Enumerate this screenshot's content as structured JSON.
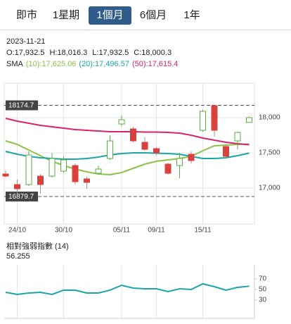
{
  "tabs": [
    "即市",
    "1星期",
    "1個月",
    "6個月",
    "1年"
  ],
  "selected_tab": 2,
  "header": {
    "date": "2023-11-21",
    "ohlc": [
      "O:17,932.5",
      "H:18,016.3",
      "L:17,932.5",
      "C:18,000.3"
    ]
  },
  "chart_data": [
    {
      "type": "candlestick",
      "categories": [
        null,
        "24/10",
        null,
        null,
        null,
        "30/10",
        null,
        null,
        null,
        null,
        "05/11",
        null,
        null,
        "09/11",
        null,
        null,
        null,
        "15/11",
        null,
        null,
        null,
        null
      ],
      "open": [
        17200,
        17050,
        17050,
        17170,
        17170,
        17240,
        17320,
        17130,
        17210,
        17420,
        17910,
        17840,
        17650,
        17560,
        17340,
        17320,
        17480,
        17820,
        18170,
        17590,
        17670,
        17932.5
      ],
      "high": [
        17250,
        17120,
        17520,
        17200,
        17500,
        17450,
        17350,
        17160,
        17320,
        17750,
        18030,
        17870,
        17720,
        17580,
        17360,
        17500,
        17520,
        18110,
        18175,
        17600,
        17800,
        18016.3
      ],
      "low": [
        17150,
        16920,
        17030,
        16920,
        17150,
        17220,
        17050,
        16990,
        17190,
        17400,
        17880,
        17650,
        17530,
        17470,
        17190,
        17140,
        17350,
        17800,
        17730,
        17430,
        17550,
        17932.5
      ],
      "close": [
        17170,
        16990,
        17470,
        17050,
        17420,
        17400,
        17090,
        17080,
        17270,
        17670,
        17970,
        17670,
        17550,
        17500,
        17210,
        17420,
        17390,
        18090,
        17820,
        17450,
        17790,
        18000.3
      ],
      "up_color": "#5aac44",
      "down_color": "#d9413f",
      "legend_title": "SMA",
      "series": [
        {
          "name": "(10):17,625.06",
          "color": "#8bc34a",
          "values": [
            17670,
            17620,
            17540,
            17460,
            17380,
            17320,
            17270,
            17230,
            17200,
            17190,
            17220,
            17280,
            17340,
            17380,
            17400,
            17420,
            17450,
            17530,
            17600,
            17610,
            17620,
            17625.06
          ]
        },
        {
          "name": "(20):17,496.57",
          "color": "#1aa6a6",
          "values": [
            17520,
            17480,
            17450,
            17430,
            17420,
            17410,
            17410,
            17420,
            17440,
            17470,
            17490,
            17500,
            17500,
            17495,
            17490,
            17480,
            17450,
            17420,
            17420,
            17430,
            17460,
            17496.57
          ]
        },
        {
          "name": "(50):17,615.4",
          "color": "#d6246e",
          "values": [
            17990,
            17950,
            17920,
            17890,
            17870,
            17850,
            17830,
            17820,
            17810,
            17800,
            17800,
            17800,
            17795,
            17795,
            17790,
            17780,
            17750,
            17710,
            17680,
            17650,
            17630,
            17615.4
          ]
        }
      ],
      "reference_lines": [
        18174.7,
        16879.7
      ],
      "ylim": [
        16490,
        18490
      ],
      "yticks": [
        {
          "value": 17000,
          "label": "17,000"
        },
        {
          "value": 17500,
          "label": "17,500"
        },
        {
          "value": 18000,
          "label": "18,000"
        }
      ],
      "grid": true
    },
    {
      "type": "line",
      "title": "相對強弱指數 (14)",
      "subtitle": "56.255",
      "series": [
        {
          "color": "#1aa6a6",
          "values": [
            44.7,
            40.7,
            43.3,
            44.7,
            40.7,
            48.7,
            48.7,
            43.3,
            43.3,
            48.7,
            58,
            52.7,
            51.3,
            51.3,
            46,
            51.3,
            50,
            60.7,
            55.3,
            48.7,
            54,
            56.255
          ]
        }
      ],
      "ylim": [
        0,
        90
      ],
      "yticks": [
        30,
        50,
        70
      ],
      "grid": true
    }
  ]
}
